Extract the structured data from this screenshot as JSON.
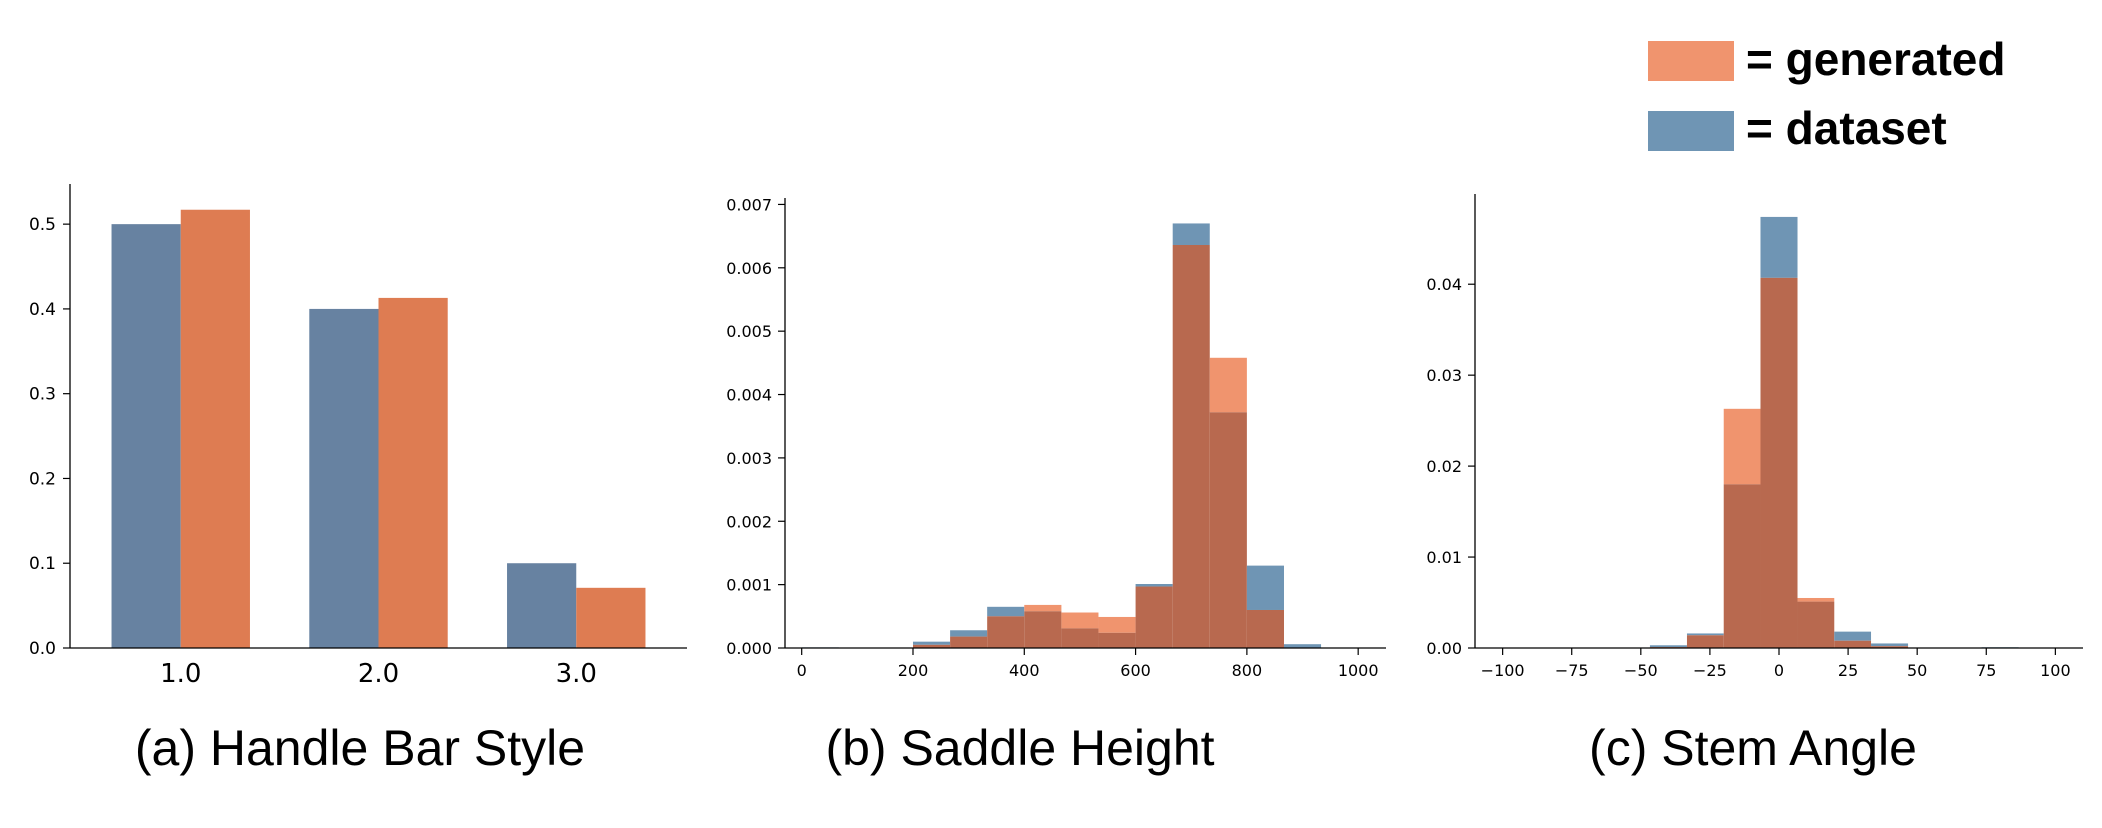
{
  "legend": {
    "entries": [
      {
        "label": "= generated",
        "color": "#F0946E"
      },
      {
        "label": "= dataset",
        "color": "#6F95B4"
      }
    ]
  },
  "colors": {
    "bar_dataset": "#6782A1",
    "bar_generated": "#DE7C52",
    "hist_dataset": "#6F95B4",
    "hist_generated": "#F0946E",
    "overlap": "#B8694F"
  },
  "chart_data": [
    {
      "type": "bar",
      "caption": "(a) Handle Bar Style",
      "categories": [
        "1.0",
        "2.0",
        "3.0"
      ],
      "series": [
        {
          "name": "dataset",
          "values": [
            0.5,
            0.4,
            0.1
          ]
        },
        {
          "name": "generated",
          "values": [
            0.517,
            0.413,
            0.071
          ]
        }
      ],
      "ylim": [
        0,
        0.545
      ],
      "yticks": [
        0.0,
        0.1,
        0.2,
        0.3,
        0.4,
        0.5
      ],
      "ytick_labels": [
        "0.0",
        "0.1",
        "0.2",
        "0.3",
        "0.4",
        "0.5"
      ]
    },
    {
      "type": "histogram",
      "caption": "(b) Saddle Height",
      "bin_edges": [
        0,
        66.7,
        133.3,
        200,
        266.7,
        333.3,
        400,
        466.7,
        533.3,
        600,
        666.7,
        733.3,
        800,
        866.7,
        933.3,
        1000
      ],
      "series": [
        {
          "name": "dataset",
          "values": [
            1e-05,
            0.0,
            0.0,
            0.0001,
            0.00028,
            0.00065,
            0.00058,
            0.00031,
            0.00024,
            0.00101,
            0.0067,
            0.00372,
            0.0013,
            6e-05,
            0.0
          ]
        },
        {
          "name": "generated",
          "values": [
            0.0,
            0.0,
            0.0,
            5e-05,
            0.00018,
            0.0005,
            0.00068,
            0.00056,
            0.00049,
            0.00097,
            0.00636,
            0.00458,
            0.0006,
            0.0,
            0.0
          ]
        }
      ],
      "xlim": [
        -30,
        1050
      ],
      "ylim": [
        0,
        0.00707
      ],
      "xticks": [
        0,
        200,
        400,
        600,
        800,
        1000
      ],
      "xtick_labels": [
        "0",
        "200",
        "400",
        "600",
        "800",
        "1000"
      ],
      "yticks": [
        0.0,
        0.001,
        0.002,
        0.003,
        0.004,
        0.005,
        0.006,
        0.007
      ],
      "ytick_labels": [
        "0.000",
        "0.001",
        "0.002",
        "0.003",
        "0.004",
        "0.005",
        "0.006",
        "0.007"
      ]
    },
    {
      "type": "histogram",
      "caption": "(c) Stem Angle",
      "bin_edges": [
        -100,
        -86.7,
        -73.3,
        -60,
        -46.7,
        -33.3,
        -20,
        -6.7,
        6.7,
        20,
        33.3,
        46.7,
        60,
        73.3,
        86.7,
        100
      ],
      "series": [
        {
          "name": "dataset",
          "values": [
            3e-05,
            3e-05,
            0.0,
            4e-05,
            0.0003,
            0.0016,
            0.018,
            0.0474,
            0.0051,
            0.0018,
            0.0005,
            0.0,
            3e-05,
            8e-05,
            0.0
          ]
        },
        {
          "name": "generated",
          "values": [
            0.0,
            0.0,
            0.0,
            0.0,
            0.0001,
            0.0014,
            0.0263,
            0.0407,
            0.0055,
            0.0008,
            0.0002,
            0.0,
            0.0,
            0.0,
            0.0
          ]
        }
      ],
      "xlim": [
        -110,
        110
      ],
      "ylim": [
        0,
        0.0497
      ],
      "xticks": [
        -100,
        -75,
        -50,
        -25,
        0,
        25,
        50,
        75,
        100
      ],
      "xtick_labels": [
        "−100",
        "−75",
        "−50",
        "−25",
        "0",
        "25",
        "50",
        "75",
        "100"
      ],
      "yticks": [
        0.0,
        0.01,
        0.02,
        0.03,
        0.04
      ],
      "ytick_labels": [
        "0.00",
        "0.01",
        "0.02",
        "0.03",
        "0.04"
      ]
    }
  ]
}
